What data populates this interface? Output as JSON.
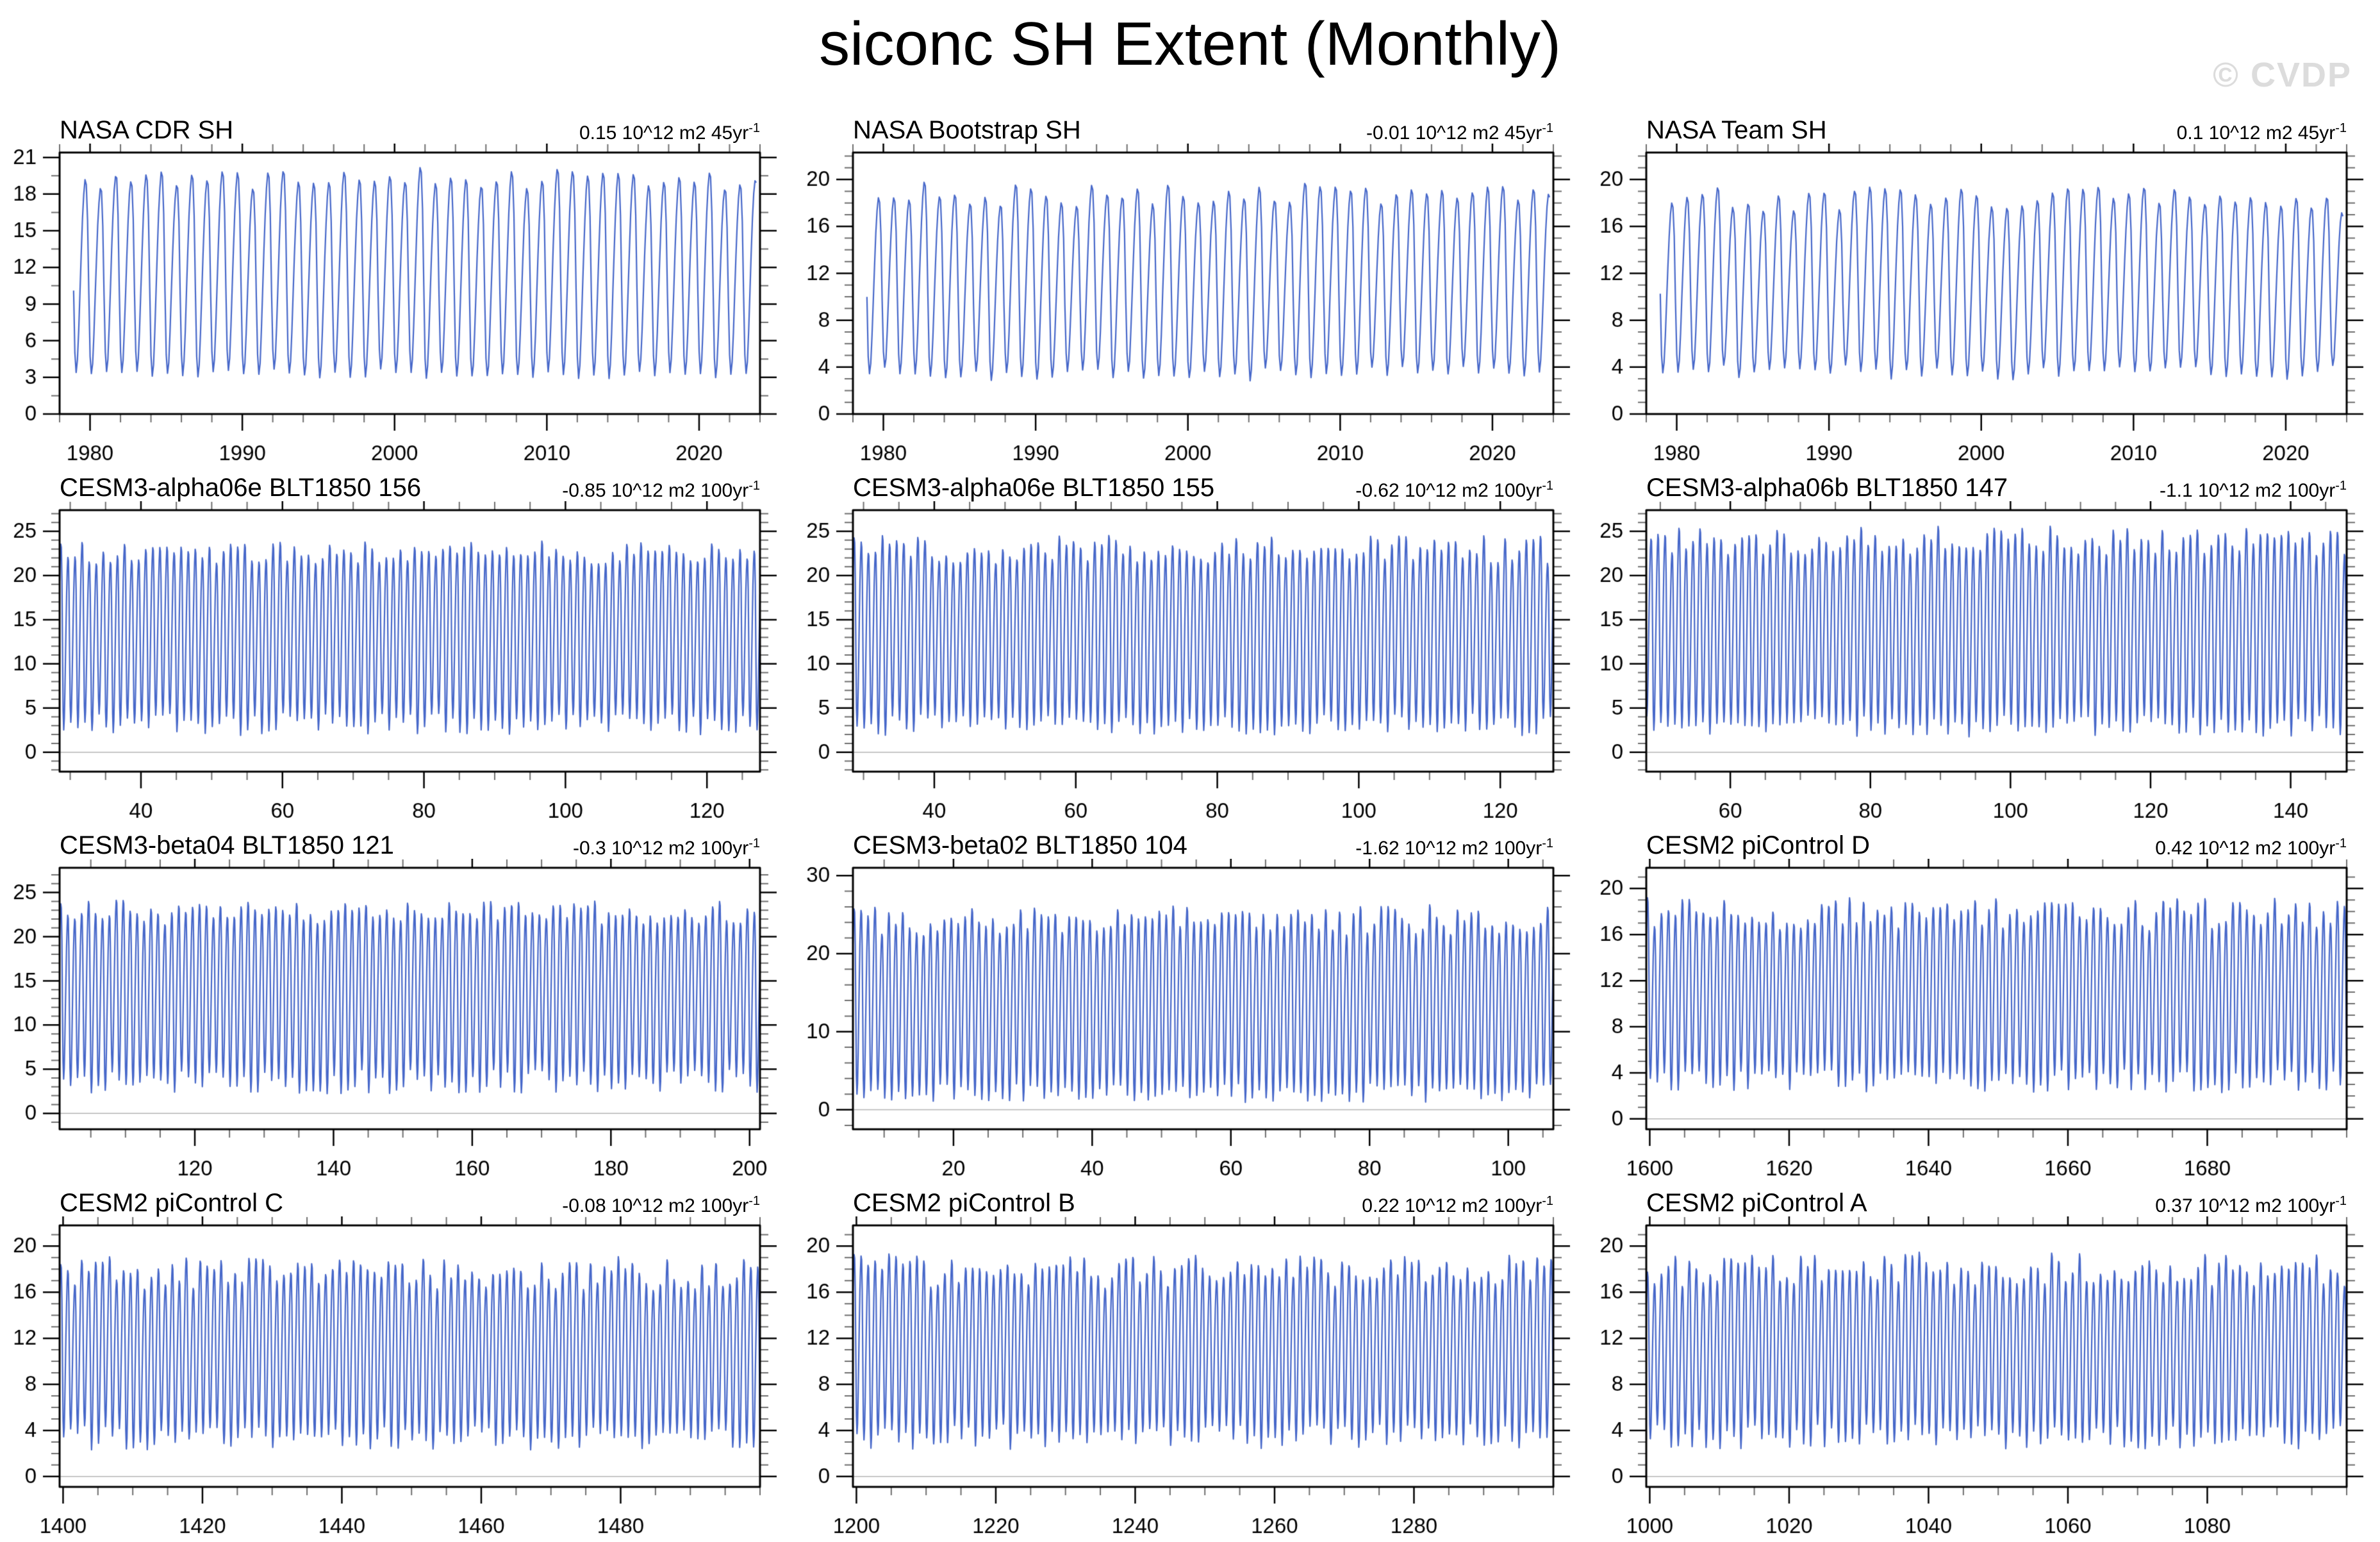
{
  "title": "siconc SH Extent (Monthly)",
  "watermark": "© CVDP",
  "colors": {
    "line": "#4667c9",
    "frame": "#000000",
    "zero_line": "#b4b4b4",
    "minor_tick": "#6e6e6e",
    "watermark": "#dcdcdc",
    "background": "#ffffff"
  },
  "chart_data": [
    {
      "type": "line",
      "title": "NASA CDR SH",
      "trend_prefix": "0.15 10^12 m2 45yr",
      "trend_sup": "-1",
      "xlim": [
        1978,
        2024
      ],
      "xticks": [
        1980,
        1990,
        2000,
        2010,
        2020
      ],
      "x_minor_step": 2,
      "ylim": [
        0,
        21.4
      ],
      "yticks": [
        0,
        3,
        6,
        9,
        12,
        15,
        18,
        21
      ],
      "y_minor_step": 1.5,
      "zero_line": false,
      "series": {
        "data_start": 1978.92,
        "data_end": 2023.83,
        "seasonal_min_range": [
          3.0,
          3.6
        ],
        "seasonal_max_range": [
          18.4,
          20.2
        ],
        "seed": 101
      }
    },
    {
      "type": "line",
      "title": "NASA Bootstrap SH",
      "trend_prefix": "-0.01 10^12 m2 45yr",
      "trend_sup": "-1",
      "xlim": [
        1978,
        2024
      ],
      "xticks": [
        1980,
        1990,
        2000,
        2010,
        2020
      ],
      "x_minor_step": 2,
      "ylim": [
        0,
        22.3
      ],
      "yticks": [
        0,
        4,
        8,
        12,
        16,
        20
      ],
      "y_minor_step": 1,
      "zero_line": false,
      "series": {
        "data_start": 1978.92,
        "data_end": 2023.83,
        "seasonal_min_range": [
          2.9,
          4.0
        ],
        "seasonal_max_range": [
          17.6,
          19.8
        ],
        "seed": 202
      }
    },
    {
      "type": "line",
      "title": "NASA Team SH",
      "trend_prefix": "0.1 10^12 m2 45yr",
      "trend_sup": "-1",
      "xlim": [
        1978,
        2024
      ],
      "xticks": [
        1980,
        1990,
        2000,
        2010,
        2020
      ],
      "x_minor_step": 2,
      "ylim": [
        0,
        22.3
      ],
      "yticks": [
        0,
        4,
        8,
        12,
        16,
        20
      ],
      "y_minor_step": 1,
      "zero_line": false,
      "series": {
        "data_start": 1978.92,
        "data_end": 2023.83,
        "seasonal_min_range": [
          3.0,
          4.1
        ],
        "seasonal_max_range": [
          17.2,
          19.4
        ],
        "seed": 303
      }
    },
    {
      "type": "line",
      "title": "CESM3-alpha06e BLT1850 156",
      "trend_prefix": "-0.85 10^12 m2 100yr",
      "trend_sup": "-1",
      "xlim": [
        28.5,
        127.5
      ],
      "xticks": [
        40,
        60,
        80,
        100,
        120
      ],
      "x_minor_step": 5,
      "ylim": [
        -2.2,
        27.4
      ],
      "yticks": [
        0,
        5,
        10,
        15,
        20,
        25
      ],
      "y_minor_step": 1,
      "zero_line": true,
      "series": {
        "data_start": 28.5,
        "data_end": 127.5,
        "seasonal_min_range": [
          2.0,
          4.4
        ],
        "seasonal_max_range": [
          21.3,
          23.8
        ],
        "seed": 404
      }
    },
    {
      "type": "line",
      "title": "CESM3-alpha06e BLT1850 155",
      "trend_prefix": "-0.62 10^12 m2 100yr",
      "trend_sup": "-1",
      "xlim": [
        28.5,
        127.5
      ],
      "xticks": [
        40,
        60,
        80,
        100,
        120
      ],
      "x_minor_step": 5,
      "ylim": [
        -2.2,
        27.4
      ],
      "yticks": [
        0,
        5,
        10,
        15,
        20,
        25
      ],
      "y_minor_step": 1,
      "zero_line": true,
      "series": {
        "data_start": 28.5,
        "data_end": 127.5,
        "seasonal_min_range": [
          1.9,
          4.4
        ],
        "seasonal_max_range": [
          21.3,
          24.6
        ],
        "seed": 505
      }
    },
    {
      "type": "line",
      "title": "CESM3-alpha06b BLT1850 147",
      "trend_prefix": "-1.1 10^12 m2 100yr",
      "trend_sup": "-1",
      "xlim": [
        48,
        148
      ],
      "xticks": [
        60,
        80,
        100,
        120,
        140
      ],
      "x_minor_step": 5,
      "ylim": [
        -2.2,
        27.4
      ],
      "yticks": [
        0,
        5,
        10,
        15,
        20,
        25
      ],
      "y_minor_step": 1,
      "zero_line": true,
      "series": {
        "data_start": 48,
        "data_end": 148,
        "seasonal_min_range": [
          1.8,
          4.2
        ],
        "seasonal_max_range": [
          22.3,
          25.6
        ],
        "seed": 606
      }
    },
    {
      "type": "line",
      "title": "CESM3-beta04 BLT1850 121",
      "trend_prefix": "-0.3 10^12 m2 100yr",
      "trend_sup": "-1",
      "xlim": [
        100.5,
        201.5
      ],
      "xticks": [
        120,
        140,
        160,
        180,
        200
      ],
      "x_minor_step": 5,
      "ylim": [
        -1.8,
        27.8
      ],
      "yticks": [
        0,
        5,
        10,
        15,
        20,
        25
      ],
      "y_minor_step": 1,
      "zero_line": true,
      "series": {
        "data_start": 100.5,
        "data_end": 201.5,
        "seasonal_min_range": [
          2.2,
          5.0
        ],
        "seasonal_max_range": [
          21.4,
          24.2
        ],
        "seed": 707
      }
    },
    {
      "type": "line",
      "title": "CESM3-beta02 BLT1850 104",
      "trend_prefix": "-1.62 10^12 m2 100yr",
      "trend_sup": "-1",
      "xlim": [
        5.5,
        106.5
      ],
      "xticks": [
        20,
        40,
        60,
        80,
        100
      ],
      "x_minor_step": 5,
      "ylim": [
        -2.5,
        31
      ],
      "yticks": [
        0,
        10,
        20,
        30
      ],
      "y_minor_step": 2,
      "zero_line": true,
      "series": {
        "data_start": 5.5,
        "data_end": 106.5,
        "seasonal_min_range": [
          1.0,
          3.4
        ],
        "seasonal_max_range": [
          22.4,
          26.2
        ],
        "seed": 808
      }
    },
    {
      "type": "line",
      "title": "CESM2 piControl D",
      "trend_prefix": "0.42 10^12 m2 100yr",
      "trend_sup": "-1",
      "xlim": [
        1599.5,
        1700
      ],
      "xticks": [
        1600,
        1620,
        1640,
        1660,
        1680
      ],
      "x_minor_step": 5,
      "ylim": [
        -0.9,
        21.8
      ],
      "yticks": [
        0,
        4,
        8,
        12,
        16,
        20
      ],
      "y_minor_step": 1,
      "zero_line": true,
      "series": {
        "data_start": 1599.5,
        "data_end": 1700,
        "seasonal_min_range": [
          2.3,
          4.3
        ],
        "seasonal_max_range": [
          16.4,
          19.2
        ],
        "seed": 909
      }
    },
    {
      "type": "line",
      "title": "CESM2 piControl C",
      "trend_prefix": "-0.08 10^12 m2 100yr",
      "trend_sup": "-1",
      "xlim": [
        1399.5,
        1500
      ],
      "xticks": [
        1400,
        1420,
        1440,
        1460,
        1480
      ],
      "x_minor_step": 5,
      "ylim": [
        -0.9,
        21.8
      ],
      "yticks": [
        0,
        4,
        8,
        12,
        16,
        20
      ],
      "y_minor_step": 1,
      "zero_line": true,
      "series": {
        "data_start": 1399.5,
        "data_end": 1500,
        "seasonal_min_range": [
          2.4,
          4.4
        ],
        "seasonal_max_range": [
          16.2,
          19.0
        ],
        "seed": 1010
      }
    },
    {
      "type": "line",
      "title": "CESM2 piControl B",
      "trend_prefix": "0.22 10^12 m2 100yr",
      "trend_sup": "-1",
      "xlim": [
        1199.5,
        1300
      ],
      "xticks": [
        1200,
        1220,
        1240,
        1260,
        1280
      ],
      "x_minor_step": 5,
      "ylim": [
        -0.9,
        21.8
      ],
      "yticks": [
        0,
        4,
        8,
        12,
        16,
        20
      ],
      "y_minor_step": 1,
      "zero_line": true,
      "series": {
        "data_start": 1199.5,
        "data_end": 1300,
        "seasonal_min_range": [
          2.4,
          4.5
        ],
        "seasonal_max_range": [
          16.4,
          19.4
        ],
        "seed": 1111
      }
    },
    {
      "type": "line",
      "title": "CESM2 piControl A",
      "trend_prefix": "0.37 10^12 m2 100yr",
      "trend_sup": "-1",
      "xlim": [
        999.5,
        1100
      ],
      "xticks": [
        1000,
        1020,
        1040,
        1060,
        1080
      ],
      "x_minor_step": 5,
      "ylim": [
        -0.9,
        21.8
      ],
      "yticks": [
        0,
        4,
        8,
        12,
        16,
        20
      ],
      "y_minor_step": 1,
      "zero_line": true,
      "series": {
        "data_start": 999.5,
        "data_end": 1100,
        "seasonal_min_range": [
          2.4,
          4.5
        ],
        "seasonal_max_range": [
          16.5,
          19.4
        ],
        "seed": 1212
      }
    }
  ]
}
